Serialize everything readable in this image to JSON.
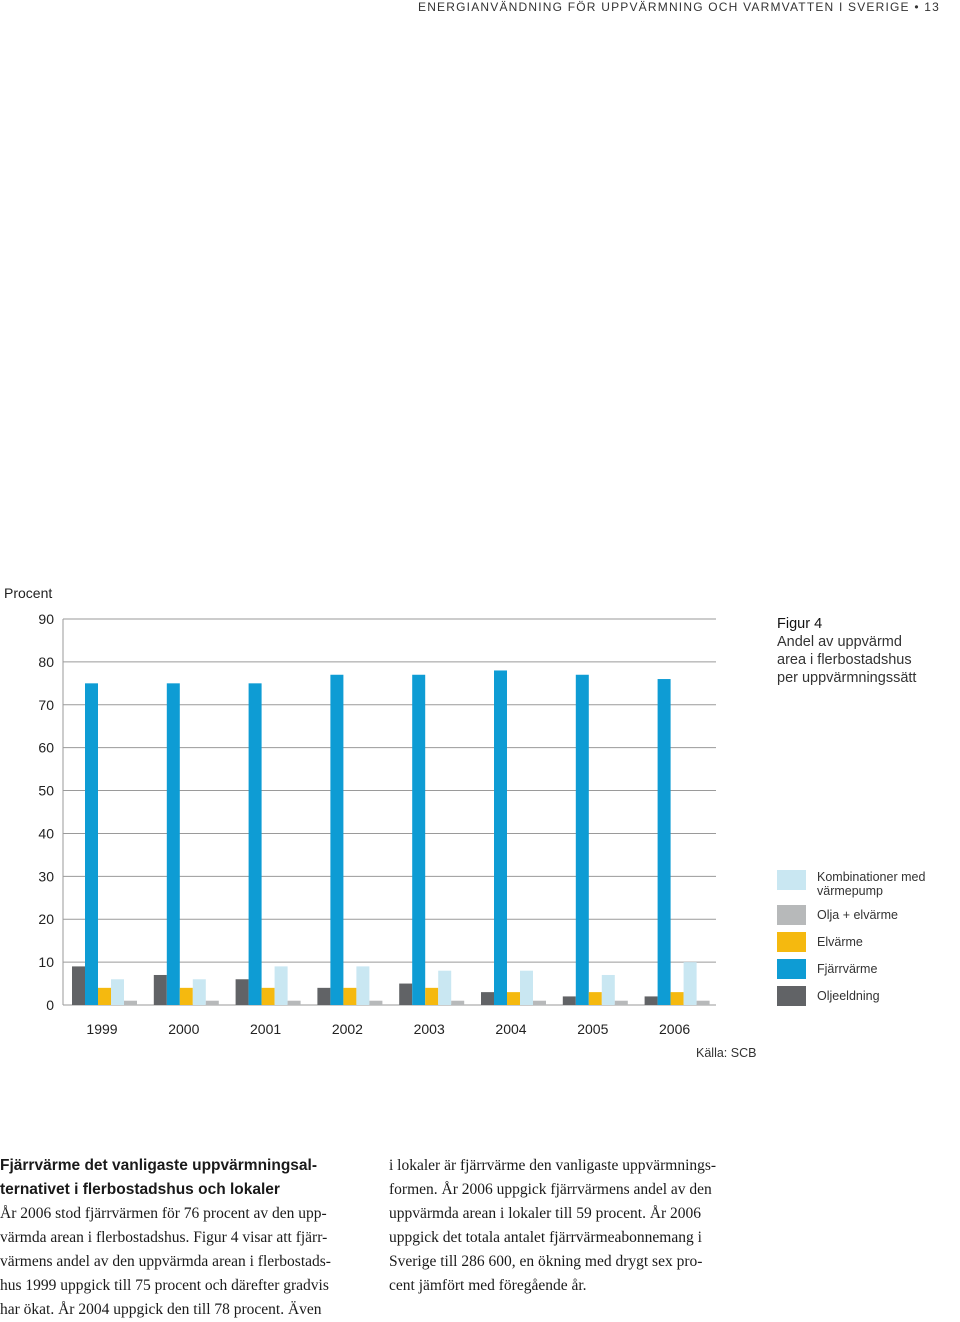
{
  "header": {
    "running_title": "ENERGIANVÄNDNING FÖR UPPVÄRMNING OCH VARMVATTEN I SVERIGE",
    "page_number": "13"
  },
  "figure": {
    "number": "Figur 4",
    "caption_lines": [
      "Andel av uppvärmd",
      "area i flerbostadshus",
      "per uppvärmningssätt"
    ],
    "source": "Källa: SCB"
  },
  "chart_data": {
    "type": "bar",
    "ylabel": "Procent",
    "ylim": [
      0,
      90
    ],
    "yticks": [
      0,
      10,
      20,
      30,
      40,
      50,
      60,
      70,
      80,
      90
    ],
    "grid": true,
    "categories": [
      "1999",
      "2000",
      "2001",
      "2002",
      "2003",
      "2004",
      "2005",
      "2006"
    ],
    "series": [
      {
        "name": "Oljeeldning",
        "color": "#616366",
        "values": [
          9,
          7,
          6,
          4,
          5,
          3,
          2,
          2
        ]
      },
      {
        "name": "Fjärrvärme",
        "color": "#0E9CD4",
        "values": [
          75,
          75,
          75,
          77,
          77,
          78,
          77,
          76
        ]
      },
      {
        "name": "Elvärme",
        "color": "#F5B90F",
        "values": [
          4,
          4,
          4,
          4,
          4,
          3,
          3,
          3
        ]
      },
      {
        "name": "Kombinationer med värmepump",
        "color": "#C9E7F2",
        "values": [
          6,
          6,
          9,
          9,
          8,
          8,
          7,
          10
        ]
      },
      {
        "name": "Olja + elvärme",
        "color": "#B7B9BA",
        "values": [
          1,
          1,
          1,
          1,
          1,
          1,
          1,
          1
        ]
      }
    ],
    "legend_position": "right",
    "legend": [
      {
        "label_lines": [
          "Kombinationer med",
          "värmepump"
        ],
        "color": "#C9E7F2"
      },
      {
        "label_lines": [
          "Olja + elvärme"
        ],
        "color": "#B7B9BA"
      },
      {
        "label_lines": [
          "Elvärme"
        ],
        "color": "#F5B90F"
      },
      {
        "label_lines": [
          "Fjärrvärme"
        ],
        "color": "#0E9CD4"
      },
      {
        "label_lines": [
          "Oljeeldning"
        ],
        "color": "#616366"
      }
    ]
  },
  "article": {
    "heading_lines": [
      "Fjärrvärme det vanligaste uppvärmningsal-",
      "ternativet i flerbostadshus och lokaler"
    ],
    "left_lines": [
      "År 2006 stod fjärrvärmen för 76 procent av den upp-",
      "värmda arean i flerbostadshus. Figur 4 visar att fjärr-",
      "värmens andel av den uppvärmda arean i flerbostads-",
      "hus 1999 uppgick till 75 procent och därefter gradvis",
      "har ökat. År 2004 uppgick den till 78 procent. Även"
    ],
    "right_lines": [
      "i lokaler är fjärrvärme den vanligaste uppvärmnings-",
      "formen. År 2006 uppgick fjärrvärmens andel av den",
      "uppvärmda arean i lokaler till 59 procent. År 2006",
      "uppgick det totala antalet fjärrvärmeabonnemang i",
      "Sverige till 286 600, en ökning med drygt sex pro-",
      "cent jämfört med föregående år."
    ]
  }
}
